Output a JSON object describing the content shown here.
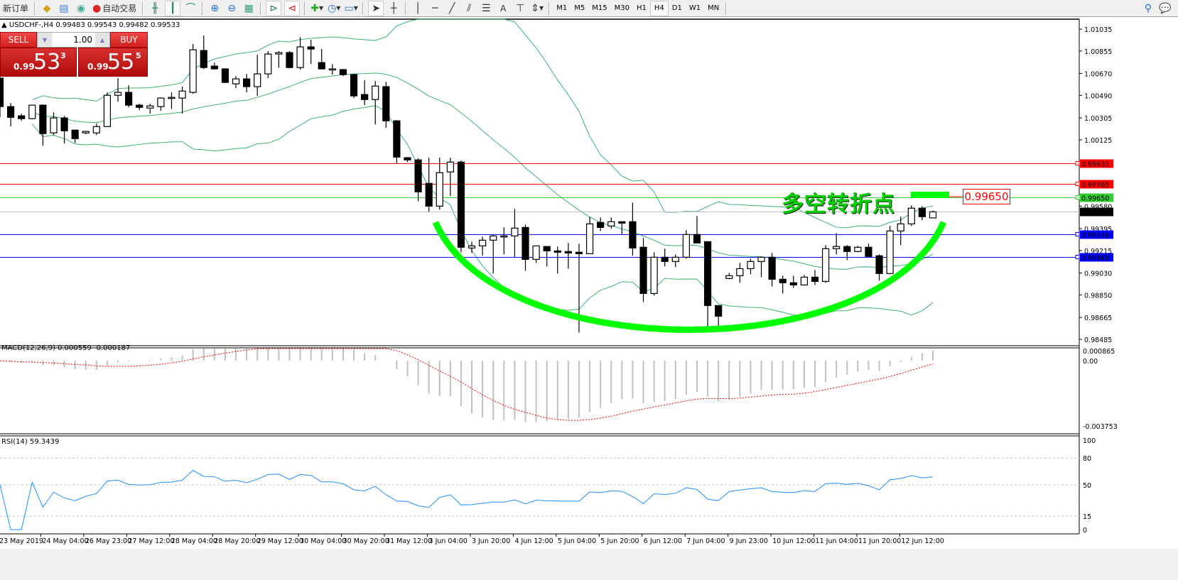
{
  "toolbar": {
    "new_order": "新订单",
    "auto_trading": "自动交易",
    "timeframes": [
      "M1",
      "M5",
      "M15",
      "M30",
      "H1",
      "H4",
      "D1",
      "W1",
      "MN"
    ],
    "active_timeframe": "H4",
    "text_tool": "A"
  },
  "chart_header": {
    "symbol": "USDCHF-,H4",
    "open": "0.99483",
    "high": "0.99543",
    "low": "0.99482",
    "close": "0.99533"
  },
  "trade_panel": {
    "sell_label": "SELL",
    "buy_label": "BUY",
    "lot": "1.00",
    "sell_prefix": "0.99",
    "sell_big": "53",
    "sell_sup": "3",
    "buy_prefix": "0.99",
    "buy_big": "55",
    "buy_sup": "5"
  },
  "annotation": {
    "text": "多空转折点",
    "price_label": "0.99650",
    "color": "#00ff00"
  },
  "chart_data": [
    {
      "type": "candlestick",
      "ylim": [
        0.98485,
        1.01035
      ],
      "y_ticks": [
        "1.01035",
        "1.00855",
        "1.00670",
        "1.00490",
        "1.00305",
        "1.00125",
        "0.99580",
        "0.99395",
        "0.99215",
        "0.99030",
        "0.98850",
        "0.98665",
        "0.98485"
      ],
      "x_ticks": [
        "23 May 2019",
        "24 May 04:00",
        "26 May 23:00",
        "27 May 12:00",
        "28 May 04:00",
        "28 May 20:00",
        "29 May 12:00",
        "30 May 04:00",
        "30 May 20:00",
        "31 May 12:00",
        "3 Jun 04:00",
        "3 Jun 20:00",
        "4 Jun 12:00",
        "5 Jun 04:00",
        "5 Jun 20:00",
        "6 Jun 12:00",
        "7 Jun 04:00",
        "9 Jun 23:00",
        "10 Jun 12:00",
        "11 Jun 04:00",
        "11 Jun 20:00",
        "12 Jun 12:00"
      ],
      "bull_color": "#ffffff",
      "bear_color": "#000000",
      "band_color": "#3cb371",
      "candles_ohlc": [
        [
          1.00632,
          1.00661,
          1.0031,
          1.00398
        ],
        [
          1.00398,
          1.00427,
          1.00234,
          1.0031
        ],
        [
          1.00322,
          1.0034,
          1.00281,
          1.00299
        ],
        [
          1.00299,
          1.0041,
          1.00293,
          1.0041
        ],
        [
          1.0041,
          1.00416,
          1.00077,
          1.00176
        ],
        [
          1.00182,
          1.00351,
          1.00164,
          1.00305
        ],
        [
          1.00305,
          1.00322,
          1.00094,
          1.00199
        ],
        [
          1.00205,
          1.00205,
          1.001,
          1.00135
        ],
        [
          1.00182,
          1.00199,
          1.0017,
          1.00194
        ],
        [
          1.00182,
          1.00258,
          1.00164,
          1.00234
        ],
        [
          1.00234,
          1.00515,
          1.00234,
          1.00491
        ],
        [
          1.00491,
          1.00632,
          1.00439,
          1.00515
        ],
        [
          1.00515,
          1.00573,
          1.00392,
          1.0041
        ],
        [
          1.0041,
          1.00421,
          1.00369,
          1.00392
        ],
        [
          1.00386,
          1.00421,
          1.0034,
          1.00404
        ],
        [
          1.00398,
          1.00474,
          1.00363,
          1.00468
        ],
        [
          1.00468,
          1.00515,
          1.0038,
          1.00474
        ],
        [
          1.00468,
          1.00562,
          1.0034,
          1.00526
        ],
        [
          1.00515,
          1.00912,
          1.00503,
          1.00865
        ],
        [
          1.00859,
          1.00982,
          1.00708,
          1.00719
        ],
        [
          1.00731,
          1.0076,
          1.00702,
          1.00708
        ],
        [
          1.00708,
          1.00713,
          1.00591,
          1.00597
        ],
        [
          1.00585,
          1.00649,
          1.0055,
          1.00626
        ],
        [
          1.00626,
          1.00667,
          1.00515,
          1.00562
        ],
        [
          1.00562,
          1.00824,
          1.00486,
          1.00667
        ],
        [
          1.00667,
          1.00854,
          1.00632,
          1.0083
        ],
        [
          1.0083,
          1.00854,
          1.00719,
          1.00842
        ],
        [
          1.00842,
          1.00854,
          1.00713,
          1.00719
        ],
        [
          1.00719,
          1.0097,
          1.00702,
          1.00889
        ],
        [
          1.00889,
          1.00947,
          1.00748,
          1.00871
        ],
        [
          1.0076,
          1.00871,
          1.00702,
          1.00708
        ],
        [
          1.00708,
          1.00748,
          1.00661,
          1.00708
        ],
        [
          1.00702,
          1.00708,
          1.00649,
          1.00661
        ],
        [
          1.00661,
          1.00667,
          1.00468,
          1.00486
        ],
        [
          1.00497,
          1.00614,
          1.0041,
          1.00456
        ],
        [
          1.00456,
          1.00608,
          1.00252,
          1.00567
        ],
        [
          1.00562,
          1.00602,
          1.00223,
          1.00281
        ],
        [
          1.00281,
          1.00287,
          0.99931,
          0.99983
        ],
        [
          0.99978,
          0.99983,
          0.99942,
          0.9996
        ],
        [
          0.9996,
          0.99972,
          0.99621,
          0.99697
        ],
        [
          0.99767,
          0.99978,
          0.99534,
          0.9958
        ],
        [
          0.9958,
          0.99978,
          0.99551,
          0.99855
        ],
        [
          0.99861,
          0.99978,
          0.99662,
          0.99942
        ],
        [
          0.99942,
          0.99954,
          0.99201,
          0.99242
        ],
        [
          0.99236,
          0.99288,
          0.99195,
          0.99253
        ],
        [
          0.99253,
          0.99329,
          0.99172,
          0.993
        ],
        [
          0.993,
          0.99347,
          0.99026,
          0.99335
        ],
        [
          0.99335,
          0.99405,
          0.99183,
          0.99335
        ],
        [
          0.99335,
          0.99557,
          0.9916,
          0.99399
        ],
        [
          0.99405,
          0.99429,
          0.99049,
          0.99142
        ],
        [
          0.99142,
          0.99253,
          0.99113,
          0.99253
        ],
        [
          0.99248,
          0.99248,
          0.99084,
          0.99212
        ],
        [
          0.99212,
          0.99248,
          0.99026,
          0.99201
        ],
        [
          0.99207,
          0.99277,
          0.99066,
          0.99195
        ],
        [
          0.99201,
          0.99271,
          0.98541,
          0.99189
        ],
        [
          0.99189,
          0.99493,
          0.99189,
          0.99434
        ],
        [
          0.99446,
          0.99487,
          0.99376,
          0.99405
        ],
        [
          0.99417,
          0.99487,
          0.99394,
          0.99452
        ],
        [
          0.99452,
          0.99452,
          0.99347,
          0.9944
        ],
        [
          0.99452,
          0.9961,
          0.99172,
          0.99236
        ],
        [
          0.99242,
          0.99318,
          0.98792,
          0.98862
        ],
        [
          0.98862,
          0.99201,
          0.98845,
          0.9916
        ],
        [
          0.9916,
          0.9923,
          0.99084,
          0.99125
        ],
        [
          0.99125,
          0.99183,
          0.99078,
          0.9916
        ],
        [
          0.9916,
          0.99382,
          0.99148,
          0.99347
        ],
        [
          0.99347,
          0.99499,
          0.99277,
          0.99277
        ],
        [
          0.99288,
          0.99288,
          0.98588,
          0.98763
        ],
        [
          0.98763,
          0.98763,
          0.98588,
          0.98675
        ],
        [
          0.98985,
          0.99031,
          0.98979,
          0.99008
        ],
        [
          0.99008,
          0.99113,
          0.9895,
          0.99066
        ],
        [
          0.99066,
          0.99148,
          0.9902,
          0.99125
        ],
        [
          0.99125,
          0.9916,
          0.98996,
          0.9916
        ],
        [
          0.9916,
          0.99195,
          0.9892,
          0.98979
        ],
        [
          0.98979,
          0.99008,
          0.98862,
          0.9895
        ],
        [
          0.9895,
          0.99008,
          0.98909,
          0.98932
        ],
        [
          0.98932,
          0.99014,
          0.98926,
          0.98996
        ],
        [
          0.98996,
          0.99055,
          0.98932,
          0.98961
        ],
        [
          0.98961,
          0.99259,
          0.9895,
          0.9923
        ],
        [
          0.9923,
          0.99358,
          0.99183,
          0.99248
        ],
        [
          0.99248,
          0.99259,
          0.99137,
          0.99207
        ],
        [
          0.99207,
          0.99253,
          0.99201,
          0.99242
        ],
        [
          0.99242,
          0.99271,
          0.99166,
          0.99166
        ],
        [
          0.99172,
          0.99183,
          0.98967,
          0.99026
        ],
        [
          0.99026,
          0.99417,
          0.9902,
          0.99376
        ],
        [
          0.99376,
          0.99493,
          0.99259,
          0.99434
        ],
        [
          0.99434,
          0.99586,
          0.99417,
          0.99563
        ],
        [
          0.99563,
          0.9958,
          0.99464,
          0.99493
        ],
        [
          0.99483,
          0.99543,
          0.99482,
          0.99533
        ]
      ],
      "price_lines": [
        {
          "price": "0.99933",
          "color": "#ff0000"
        },
        {
          "price": "0.99765",
          "color": "#ff0000"
        },
        {
          "price": "0.99650",
          "color": "#32cd32"
        },
        {
          "price": "0.99533",
          "color": "#000000",
          "line_color": "#c0c0c0"
        },
        {
          "price": "0.99346",
          "color": "#0000ff"
        },
        {
          "price": "0.99161",
          "color": "#0000ff"
        }
      ]
    },
    {
      "type": "bar",
      "title": "MACD(12,26,9) 0.000559 -0.000187",
      "ylim": [
        -0.003753,
        0.000865
      ],
      "y_ticks": [
        "0.000865",
        "0.00",
        "-0.003753"
      ],
      "histogram_color": "#c0c0c0",
      "signal_color": "#ff0000"
    },
    {
      "type": "line",
      "title": "RSI(14) 59.3439",
      "ylim": [
        0,
        100
      ],
      "y_ticks": [
        "100",
        "80",
        "50",
        "15",
        "0"
      ],
      "levels": [
        80,
        50,
        15
      ],
      "line_color": "#1e90ff"
    }
  ]
}
